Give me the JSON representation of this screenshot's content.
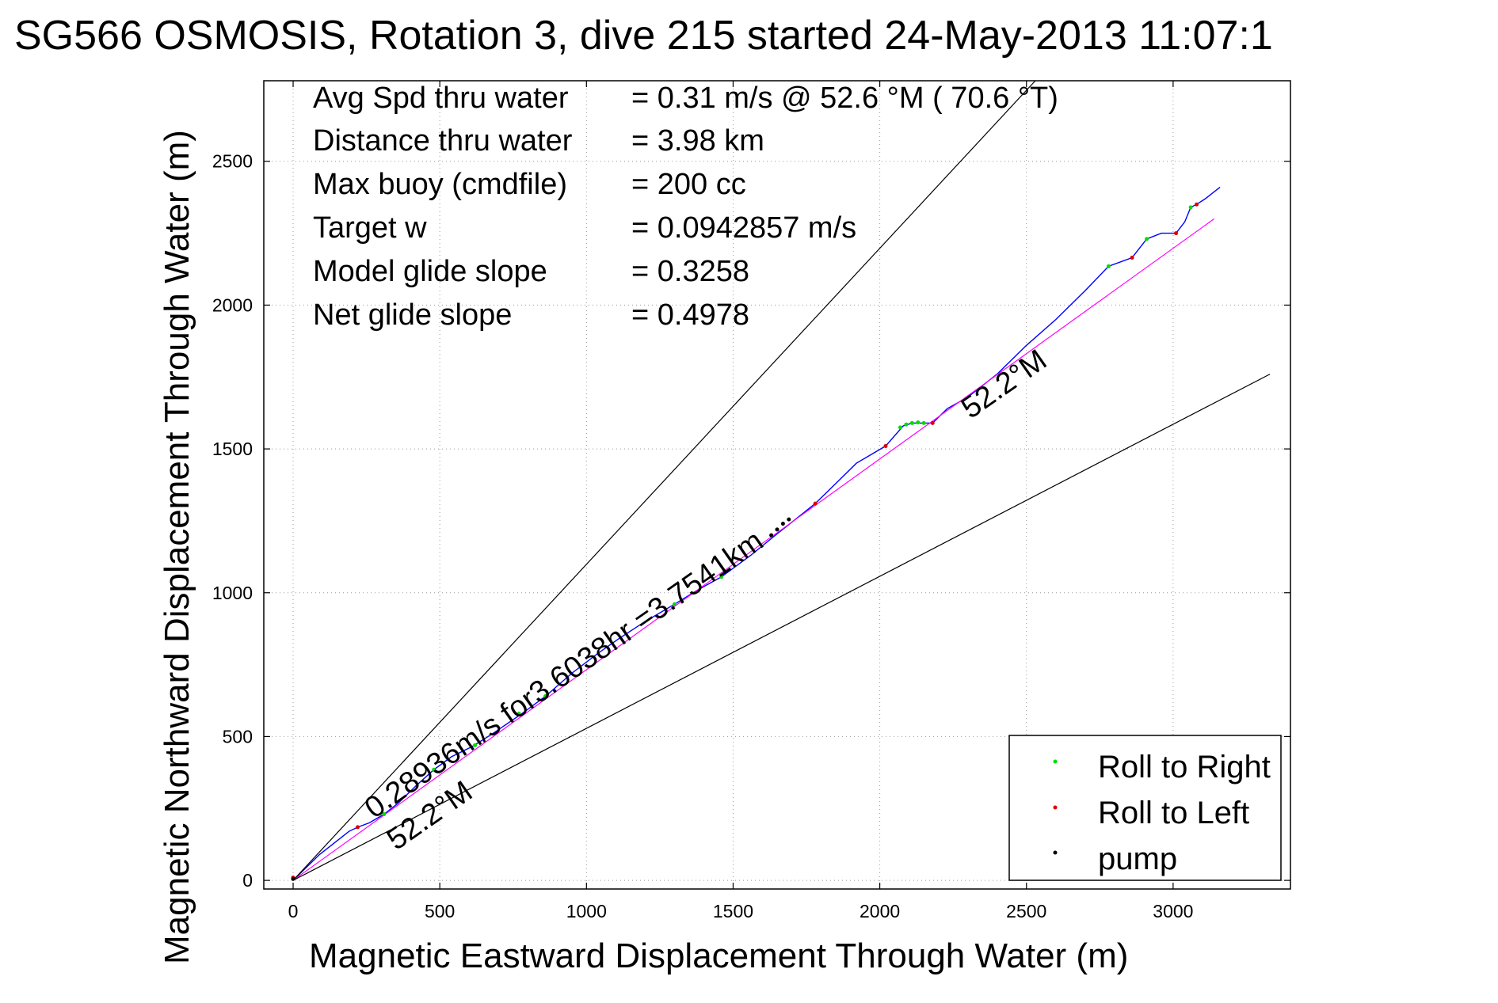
{
  "title": "SG566 OSMOSIS, Rotation 3, dive 215 started 24-May-2013 11:07:1",
  "stats": [
    {
      "label": "Avg Spd thru water",
      "value": "=  0.31 m/s @  52.6 °M ( 70.6 °T)"
    },
    {
      "label": "Distance thru water",
      "value": "=  3.98 km"
    },
    {
      "label": "Max buoy (cmdfile)",
      "value": "= 200 cc"
    },
    {
      "label": "Target w",
      "value": "= 0.0942857 m/s"
    },
    {
      "label": "Model glide slope",
      "value": "= 0.3258"
    },
    {
      "label": "Net glide slope",
      "value": "= 0.4978"
    }
  ],
  "annotations": {
    "speed_label": "0.28936m/s for3.6038hr =3.7541km",
    "heading_label_lower": "52.2°M",
    "heading_label_upper": "52.2°M"
  },
  "legend": [
    {
      "label": "Roll to Right",
      "color": "#00dd00"
    },
    {
      "label": "Roll to Left",
      "color": "#dd0000"
    },
    {
      "label": "pump",
      "color": "#000000"
    }
  ],
  "chart_data": {
    "type": "line",
    "title": "SG566 OSMOSIS, Rotation 3, dive 215 started 24-May-2013 11:07:1",
    "xlabel": "Magnetic Eastward Displacement Through Water (m)",
    "ylabel": "Magnetic Northward Displacement Through Water (m)",
    "xlim": [
      -100,
      3400
    ],
    "ylim": [
      -30,
      2780
    ],
    "xticks": [
      0,
      500,
      1000,
      1500,
      2000,
      2500,
      3000
    ],
    "yticks": [
      0,
      500,
      1000,
      1500,
      2000,
      2500
    ],
    "grid": true,
    "legend_position": "bottom-right",
    "series": [
      {
        "color": "#0000ff",
        "x": [
          0,
          40,
          90,
          140,
          190,
          220,
          260,
          310,
          360,
          420,
          480,
          540,
          610,
          680,
          780,
          860,
          950,
          1040,
          1110,
          1200,
          1300,
          1380,
          1460,
          1560,
          1650,
          1700,
          1780,
          1850,
          1920,
          2020,
          2080,
          2110,
          2150,
          2180,
          2230,
          2300,
          2400,
          2500,
          2600,
          2700,
          2780,
          2860,
          2910,
          2960,
          3010,
          3040,
          3060,
          3080,
          3110,
          3160
        ],
        "y": [
          0,
          40,
          90,
          130,
          170,
          185,
          200,
          230,
          270,
          330,
          385,
          430,
          465,
          510,
          580,
          640,
          720,
          790,
          840,
          900,
          960,
          1010,
          1055,
          1130,
          1205,
          1245,
          1310,
          1380,
          1450,
          1510,
          1580,
          1590,
          1590,
          1590,
          1640,
          1680,
          1760,
          1860,
          1950,
          2050,
          2135,
          2165,
          2230,
          2250,
          2250,
          2290,
          2340,
          2350,
          2370,
          2410
        ]
      },
      {
        "color": "#ff00ff",
        "x": [
          0,
          3140
        ],
        "y": [
          0,
          2300
        ]
      },
      {
        "color": "#000000",
        "x": [
          0,
          2530
        ],
        "y": [
          0,
          2780
        ]
      },
      {
        "color": "#000000",
        "x": [
          0,
          3330
        ],
        "y": [
          0,
          1760
        ]
      }
    ],
    "roll_right": [
      [
        310,
        230
      ],
      [
        480,
        385
      ],
      [
        620,
        470
      ],
      [
        770,
        580
      ],
      [
        860,
        640
      ],
      [
        1300,
        960
      ],
      [
        1460,
        1055
      ],
      [
        2070,
        1575
      ],
      [
        2090,
        1585
      ],
      [
        2110,
        1590
      ],
      [
        2130,
        1592
      ],
      [
        2150,
        1590
      ],
      [
        2780,
        2135
      ],
      [
        2910,
        2230
      ],
      [
        3060,
        2340
      ]
    ],
    "roll_left": [
      [
        220,
        185
      ],
      [
        2020,
        1510
      ],
      [
        2180,
        1590
      ],
      [
        1780,
        1310
      ],
      [
        2860,
        2165
      ],
      [
        3010,
        2250
      ],
      [
        3080,
        2350
      ],
      [
        0,
        10
      ]
    ],
    "pump": [
      [
        1630,
        1200
      ],
      [
        1650,
        1220
      ],
      [
        1670,
        1240
      ],
      [
        1690,
        1255
      ],
      [
        0,
        5
      ]
    ]
  }
}
